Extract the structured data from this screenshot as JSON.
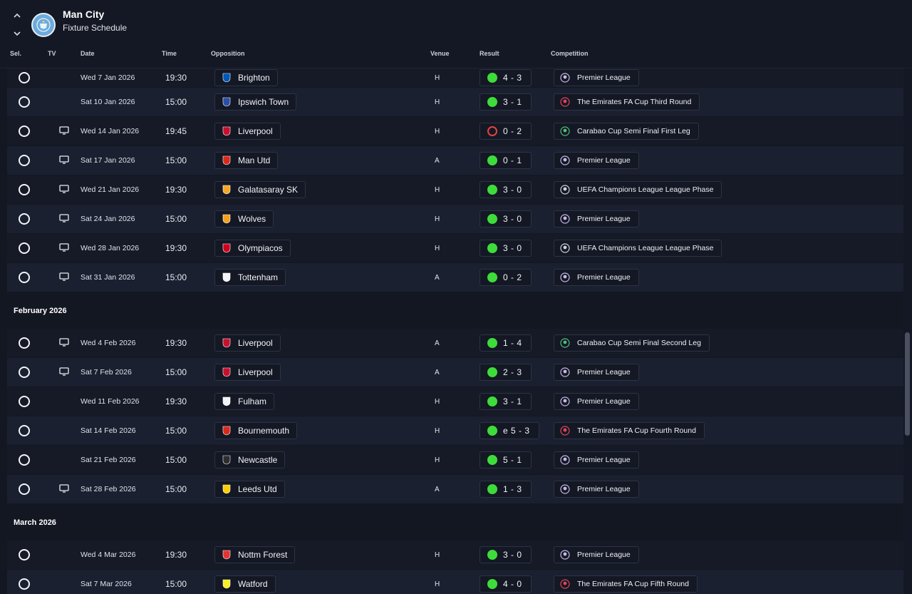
{
  "header": {
    "club_name": "Man City",
    "page_title": "Fixture Schedule"
  },
  "columns": {
    "sel": "Sel.",
    "tv": "TV",
    "date": "Date",
    "time": "Time",
    "opposition": "Opposition",
    "venue": "Venue",
    "result": "Result",
    "competition": "Competition"
  },
  "colors": {
    "win": "#3ddc3a",
    "loss": "#e2443d",
    "background": "#131722"
  },
  "groups": [
    {
      "month": "",
      "fixtures": [
        {
          "tv": false,
          "date": "Wed 7 Jan 2026",
          "time": "19:30",
          "opponent": "Brighton",
          "badge": "brighton-badge-icon",
          "venue": "H",
          "outcome": "win",
          "score": "4 - 3",
          "competition": "Premier League",
          "comp_icon": "premier-league-icon"
        },
        {
          "tv": false,
          "date": "Sat 10 Jan 2026",
          "time": "15:00",
          "opponent": "Ipswich Town",
          "badge": "ipswich-badge-icon",
          "venue": "H",
          "outcome": "win",
          "score": "3 - 1",
          "competition": "The Emirates FA Cup Third Round",
          "comp_icon": "fa-cup-icon"
        },
        {
          "tv": true,
          "date": "Wed 14 Jan 2026",
          "time": "19:45",
          "opponent": "Liverpool",
          "badge": "liverpool-badge-icon",
          "venue": "H",
          "outcome": "loss",
          "score": "0 - 2",
          "competition": "Carabao Cup Semi Final First Leg",
          "comp_icon": "carabao-cup-icon"
        },
        {
          "tv": true,
          "date": "Sat 17 Jan 2026",
          "time": "15:00",
          "opponent": "Man Utd",
          "badge": "man-utd-badge-icon",
          "venue": "A",
          "outcome": "win",
          "score": "0 - 1",
          "competition": "Premier League",
          "comp_icon": "premier-league-icon"
        },
        {
          "tv": true,
          "date": "Wed 21 Jan 2026",
          "time": "19:30",
          "opponent": "Galatasaray SK",
          "badge": "galatasaray-badge-icon",
          "venue": "H",
          "outcome": "win",
          "score": "3 - 0",
          "competition": "UEFA Champions League League Phase",
          "comp_icon": "champions-league-icon"
        },
        {
          "tv": true,
          "date": "Sat 24 Jan 2026",
          "time": "15:00",
          "opponent": "Wolves",
          "badge": "wolves-badge-icon",
          "venue": "H",
          "outcome": "win",
          "score": "3 - 0",
          "competition": "Premier League",
          "comp_icon": "premier-league-icon"
        },
        {
          "tv": true,
          "date": "Wed 28 Jan 2026",
          "time": "19:30",
          "opponent": "Olympiacos",
          "badge": "olympiacos-badge-icon",
          "venue": "H",
          "outcome": "win",
          "score": "3 - 0",
          "competition": "UEFA Champions League League Phase",
          "comp_icon": "champions-league-icon"
        },
        {
          "tv": true,
          "date": "Sat 31 Jan 2026",
          "time": "15:00",
          "opponent": "Tottenham",
          "badge": "tottenham-badge-icon",
          "venue": "A",
          "outcome": "win",
          "score": "0 - 2",
          "competition": "Premier League",
          "comp_icon": "premier-league-icon"
        }
      ]
    },
    {
      "month": "February 2026",
      "fixtures": [
        {
          "tv": true,
          "date": "Wed 4 Feb 2026",
          "time": "19:30",
          "opponent": "Liverpool",
          "badge": "liverpool-badge-icon",
          "venue": "A",
          "outcome": "win",
          "score": "1 - 4",
          "competition": "Carabao Cup Semi Final Second Leg",
          "comp_icon": "carabao-cup-icon"
        },
        {
          "tv": true,
          "date": "Sat 7 Feb 2026",
          "time": "15:00",
          "opponent": "Liverpool",
          "badge": "liverpool-badge-icon",
          "venue": "A",
          "outcome": "win",
          "score": "2 - 3",
          "competition": "Premier League",
          "comp_icon": "premier-league-icon"
        },
        {
          "tv": false,
          "date": "Wed 11 Feb 2026",
          "time": "19:30",
          "opponent": "Fulham",
          "badge": "fulham-badge-icon",
          "venue": "H",
          "outcome": "win",
          "score": "3 - 1",
          "competition": "Premier League",
          "comp_icon": "premier-league-icon"
        },
        {
          "tv": false,
          "date": "Sat 14 Feb 2026",
          "time": "15:00",
          "opponent": "Bournemouth",
          "badge": "bournemouth-badge-icon",
          "venue": "H",
          "outcome": "win",
          "score": "e 5 - 3",
          "competition": "The Emirates FA Cup Fourth Round",
          "comp_icon": "fa-cup-icon"
        },
        {
          "tv": false,
          "date": "Sat 21 Feb 2026",
          "time": "15:00",
          "opponent": "Newcastle",
          "badge": "newcastle-badge-icon",
          "venue": "H",
          "outcome": "win",
          "score": "5 - 1",
          "competition": "Premier League",
          "comp_icon": "premier-league-icon"
        },
        {
          "tv": true,
          "date": "Sat 28 Feb 2026",
          "time": "15:00",
          "opponent": "Leeds Utd",
          "badge": "leeds-badge-icon",
          "venue": "A",
          "outcome": "win",
          "score": "1 - 3",
          "competition": "Premier League",
          "comp_icon": "premier-league-icon"
        }
      ]
    },
    {
      "month": "March 2026",
      "fixtures": [
        {
          "tv": false,
          "date": "Wed 4 Mar 2026",
          "time": "19:30",
          "opponent": "Nottm Forest",
          "badge": "nottm-forest-badge-icon",
          "venue": "H",
          "outcome": "win",
          "score": "3 - 0",
          "competition": "Premier League",
          "comp_icon": "premier-league-icon"
        },
        {
          "tv": false,
          "date": "Sat 7 Mar 2026",
          "time": "15:00",
          "opponent": "Watford",
          "badge": "watford-badge-icon",
          "venue": "H",
          "outcome": "win",
          "score": "4 - 0",
          "competition": "The Emirates FA Cup Fifth Round",
          "comp_icon": "fa-cup-icon"
        }
      ]
    }
  ]
}
